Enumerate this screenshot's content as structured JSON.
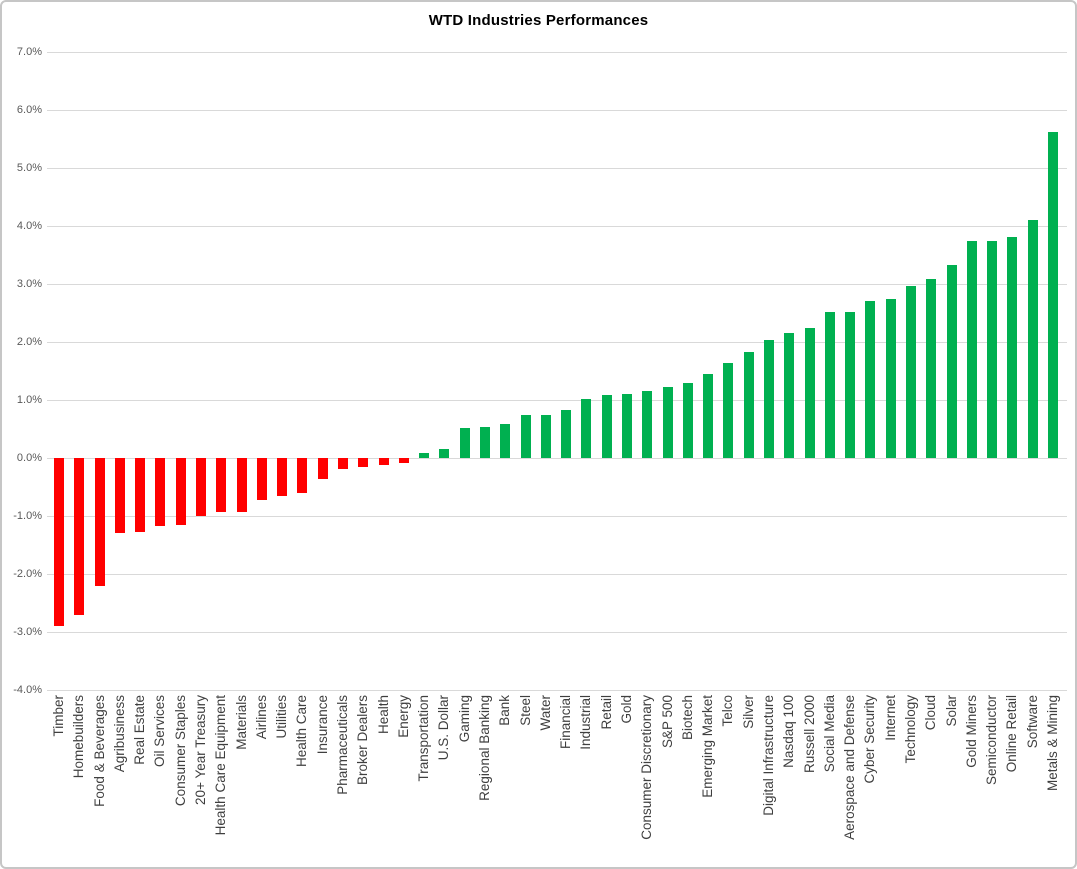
{
  "chart_data": {
    "type": "bar",
    "title": "WTD Industries Performances",
    "xlabel": "",
    "ylabel": "",
    "ylim": [
      -4.0,
      7.0
    ],
    "ytick_step": 1.0,
    "grid": true,
    "legend": false,
    "ytick_labels": [
      "7.0%",
      "6.0%",
      "5.0%",
      "4.0%",
      "3.0%",
      "2.0%",
      "1.0%",
      "0.0%",
      "-1.0%",
      "-2.0%",
      "-3.0%",
      "-4.0%"
    ],
    "categories": [
      "Timber",
      "Homebuilders",
      "Food & Beverages",
      "Agribusiness",
      "Real Estate",
      "Oil Services",
      "Consumer Staples",
      "20+ Year Treasury",
      "Health Care Equipment",
      "Materials",
      "Airlines",
      "Utilities",
      "Health Care",
      "Insurance",
      "Pharmaceuticals",
      "Broker Dealers",
      "Health",
      "Energy",
      "Transportation",
      "U.S. Dollar",
      "Gaming",
      "Regional Banking",
      "Bank",
      "Steel",
      "Water",
      "Financial",
      "Industrial",
      "Retail",
      "Gold",
      "Consumer Discretionary",
      "S&P 500",
      "Biotech",
      "Emerging Market",
      "Telco",
      "Silver",
      "Digital Infrastructure",
      "Nasdaq 100",
      "Russell 2000",
      "Social Media",
      "Aerospace and Defense",
      "Cyber Security",
      "Internet",
      "Technology",
      "Cloud",
      "Solar",
      "Gold Miners",
      "Semiconductor",
      "Online Retail",
      "Software",
      "Metals & Mining"
    ],
    "values": [
      -2.9,
      -2.7,
      -2.2,
      -1.3,
      -1.28,
      -1.18,
      -1.16,
      -1.0,
      -0.93,
      -0.93,
      -0.73,
      -0.65,
      -0.61,
      -0.36,
      -0.19,
      -0.16,
      -0.12,
      -0.08,
      0.09,
      0.16,
      0.51,
      0.54,
      0.59,
      0.74,
      0.75,
      0.82,
      1.01,
      1.08,
      1.11,
      1.15,
      1.23,
      1.3,
      1.44,
      1.64,
      1.82,
      2.04,
      2.16,
      2.24,
      2.51,
      2.52,
      2.7,
      2.74,
      2.97,
      3.09,
      3.33,
      3.74,
      3.74,
      3.81,
      4.1,
      5.62
    ],
    "colors": {
      "positive": "#00b050",
      "negative": "#ff0000",
      "gridline": "#d9d9d9",
      "axis_label": "#595959",
      "category_label": "#3f3f3f",
      "title": "#000000"
    }
  }
}
